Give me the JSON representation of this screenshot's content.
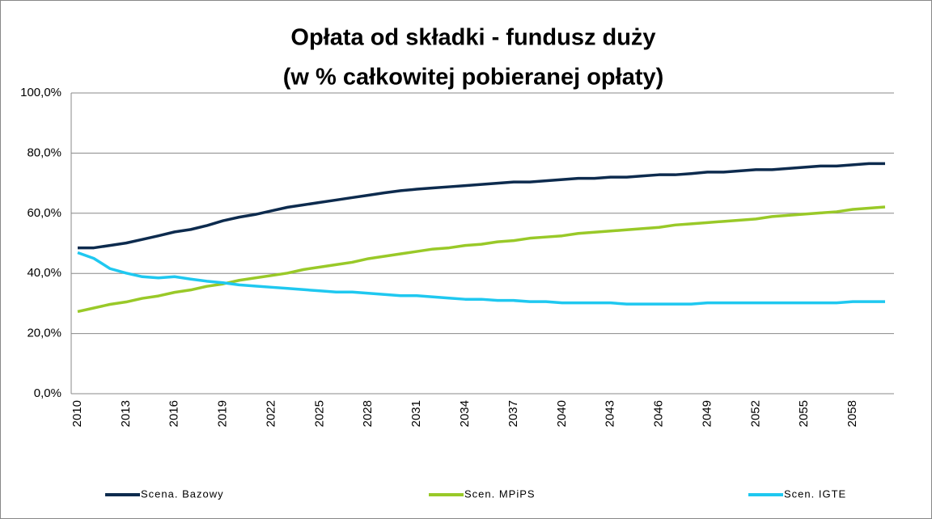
{
  "chart_data": {
    "type": "line",
    "title": [
      "Opłata od składki - fundusz duży",
      "(w % całkowitej pobieranej opłaty)"
    ],
    "x": [
      2010,
      2011,
      2012,
      2013,
      2014,
      2015,
      2016,
      2017,
      2018,
      2019,
      2020,
      2021,
      2022,
      2023,
      2024,
      2025,
      2026,
      2027,
      2028,
      2029,
      2030,
      2031,
      2032,
      2033,
      2034,
      2035,
      2036,
      2037,
      2038,
      2039,
      2040,
      2041,
      2042,
      2043,
      2044,
      2045,
      2046,
      2047,
      2048,
      2049,
      2050,
      2051,
      2052,
      2053,
      2054,
      2055,
      2056,
      2057,
      2058,
      2059,
      2060
    ],
    "xlim": [
      2010,
      2060
    ],
    "xticks": [
      2010,
      2013,
      2016,
      2019,
      2022,
      2025,
      2028,
      2031,
      2034,
      2037,
      2040,
      2043,
      2046,
      2049,
      2052,
      2055,
      2058
    ],
    "ylim": [
      0,
      100
    ],
    "yticks": [
      {
        "value": 0,
        "label": "0,0%"
      },
      {
        "value": 20,
        "label": "20,0%"
      },
      {
        "value": 40,
        "label": "40,0%"
      },
      {
        "value": 60,
        "label": "60,0%"
      },
      {
        "value": 80,
        "label": "80,0%"
      },
      {
        "value": 100,
        "label": "100,0%"
      }
    ],
    "grid": true,
    "legend": "bottom",
    "series": [
      {
        "name": "Scena. Bazowy",
        "color": "#0d2b4e",
        "values": [
          48.5,
          48.5,
          49.3,
          50.1,
          51.3,
          52.5,
          53.8,
          54.6,
          55.9,
          57.5,
          58.7,
          59.6,
          60.8,
          62.0,
          62.8,
          63.6,
          64.4,
          65.2,
          66.0,
          66.8,
          67.5,
          68.0,
          68.4,
          68.8,
          69.2,
          69.6,
          70.0,
          70.4,
          70.4,
          70.8,
          71.2,
          71.6,
          71.6,
          72.0,
          72.0,
          72.4,
          72.8,
          72.8,
          73.2,
          73.7,
          73.7,
          74.1,
          74.5,
          74.5,
          74.9,
          75.3,
          75.7,
          75.7,
          76.1,
          76.5,
          76.5
        ]
      },
      {
        "name": "Scen. MPiPS",
        "color": "#99c928",
        "values": [
          27.3,
          28.5,
          29.7,
          30.5,
          31.7,
          32.5,
          33.7,
          34.5,
          35.7,
          36.5,
          37.7,
          38.5,
          39.3,
          40.1,
          41.3,
          42.1,
          42.9,
          43.7,
          44.9,
          45.7,
          46.5,
          47.3,
          48.1,
          48.5,
          49.3,
          49.7,
          50.5,
          50.9,
          51.7,
          52.1,
          52.5,
          53.3,
          53.7,
          54.1,
          54.5,
          54.9,
          55.3,
          56.1,
          56.5,
          56.9,
          57.3,
          57.7,
          58.1,
          58.9,
          59.3,
          59.7,
          60.1,
          60.5,
          61.3,
          61.7,
          62.1
        ]
      },
      {
        "name": "Scen. IGTE",
        "color": "#1fc8f0",
        "values": [
          46.9,
          45.0,
          41.6,
          40.1,
          38.9,
          38.5,
          38.9,
          38.1,
          37.4,
          36.9,
          36.2,
          35.8,
          35.4,
          35.0,
          34.6,
          34.2,
          33.8,
          33.8,
          33.4,
          33.0,
          32.6,
          32.6,
          32.2,
          31.8,
          31.4,
          31.4,
          31.0,
          31.0,
          30.6,
          30.6,
          30.2,
          30.2,
          30.2,
          30.2,
          29.8,
          29.8,
          29.8,
          29.8,
          29.8,
          30.2,
          30.2,
          30.2,
          30.2,
          30.2,
          30.2,
          30.2,
          30.2,
          30.2,
          30.6,
          30.6,
          30.6
        ]
      }
    ]
  }
}
